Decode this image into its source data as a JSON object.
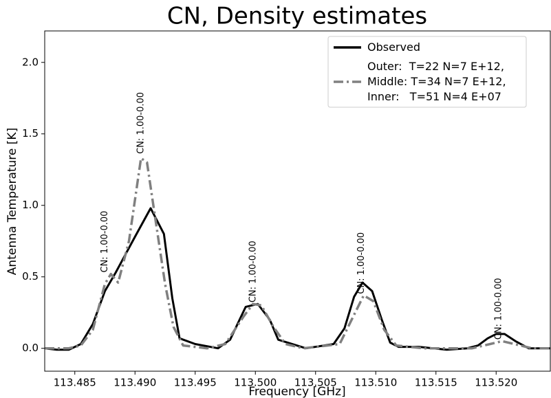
{
  "chart_data": {
    "type": "line",
    "title": "CN, Density estimates",
    "xlabel": "Frequency [GHz]",
    "ylabel": "Antenna Temperature [K]",
    "xlim": [
      113.4825,
      113.5245
    ],
    "ylim": [
      -0.16,
      2.22
    ],
    "xticks": [
      {
        "value": 113.485,
        "label": "113.485"
      },
      {
        "value": 113.49,
        "label": "113.490"
      },
      {
        "value": 113.495,
        "label": "113.495"
      },
      {
        "value": 113.5,
        "label": "113.500"
      },
      {
        "value": 113.505,
        "label": "113.505"
      },
      {
        "value": 113.51,
        "label": "113.510"
      },
      {
        "value": 113.515,
        "label": "113.515"
      },
      {
        "value": 113.52,
        "label": "113.520"
      }
    ],
    "yticks": [
      {
        "value": 0,
        "label": "0.0"
      },
      {
        "value": 0.5,
        "label": "0.5"
      },
      {
        "value": 1,
        "label": "1.0"
      },
      {
        "value": 1.5,
        "label": "1.5"
      },
      {
        "value": 2,
        "label": "2.0"
      }
    ],
    "legend": "upper right",
    "series": [
      {
        "name": "Observed",
        "color": "#000000",
        "dash": "solid",
        "x": [
          113.4825,
          113.4835,
          113.4845,
          113.4855,
          113.4865,
          113.4875,
          113.4884,
          113.49,
          113.4913,
          113.4924,
          113.4931,
          113.4937,
          113.495,
          113.4969,
          113.4979,
          113.4992,
          113.5002,
          113.5012,
          113.5019,
          113.5042,
          113.5065,
          113.5074,
          113.5082,
          113.5089,
          113.5097,
          113.5105,
          113.5112,
          113.5119,
          113.5136,
          113.5159,
          113.5176,
          113.5185,
          113.5193,
          113.52,
          113.5207,
          113.5216,
          113.5227,
          113.5245
        ],
        "values": [
          0.0,
          -0.01,
          -0.01,
          0.03,
          0.17,
          0.4,
          0.53,
          0.78,
          0.98,
          0.8,
          0.35,
          0.07,
          0.03,
          0.0,
          0.06,
          0.29,
          0.31,
          0.2,
          0.06,
          0.0,
          0.03,
          0.14,
          0.36,
          0.46,
          0.4,
          0.2,
          0.04,
          0.01,
          0.01,
          -0.01,
          0.0,
          0.02,
          0.07,
          0.1,
          0.1,
          0.05,
          0.0,
          0.0
        ]
      },
      {
        "name": "Outer:  T=22 N=7 E+12,\nMiddle: T=34 N=7 E+12,\nInner:   T=51 N=4 E+07",
        "color": "#808080",
        "dash": "dashdot",
        "x": [
          113.4825,
          113.4845,
          113.4855,
          113.4865,
          113.4875,
          113.488,
          113.4886,
          113.4895,
          113.4905,
          113.491,
          113.4917,
          113.4925,
          113.4932,
          113.494,
          113.496,
          113.4975,
          113.499,
          113.4998,
          113.5005,
          113.5015,
          113.5025,
          113.504,
          113.507,
          113.508,
          113.509,
          113.5098,
          113.5107,
          113.5117,
          113.514,
          113.518,
          113.5195,
          113.5205,
          113.5215,
          113.523,
          113.5245
        ],
        "values": [
          0.0,
          0.0,
          0.02,
          0.13,
          0.45,
          0.52,
          0.46,
          0.75,
          1.33,
          1.3,
          0.9,
          0.45,
          0.15,
          0.02,
          0.0,
          0.03,
          0.22,
          0.31,
          0.3,
          0.15,
          0.03,
          0.0,
          0.03,
          0.2,
          0.37,
          0.33,
          0.13,
          0.02,
          0.0,
          0.0,
          0.03,
          0.05,
          0.03,
          0.0,
          0.0
        ]
      }
    ],
    "annotations": [
      {
        "text": "CN: 1.00-0.00",
        "x": 113.4875,
        "y": 0.53
      },
      {
        "text": "CN: 1.00-0.00",
        "x": 113.4905,
        "y": 1.36
      },
      {
        "text": "CN: 1.00-0.00",
        "x": 113.4998,
        "y": 0.32
      },
      {
        "text": "CN: 1.00-0.00",
        "x": 113.5088,
        "y": 0.38
      },
      {
        "text": "CN: 1.00-0.00",
        "x": 113.5202,
        "y": 0.06
      }
    ]
  }
}
